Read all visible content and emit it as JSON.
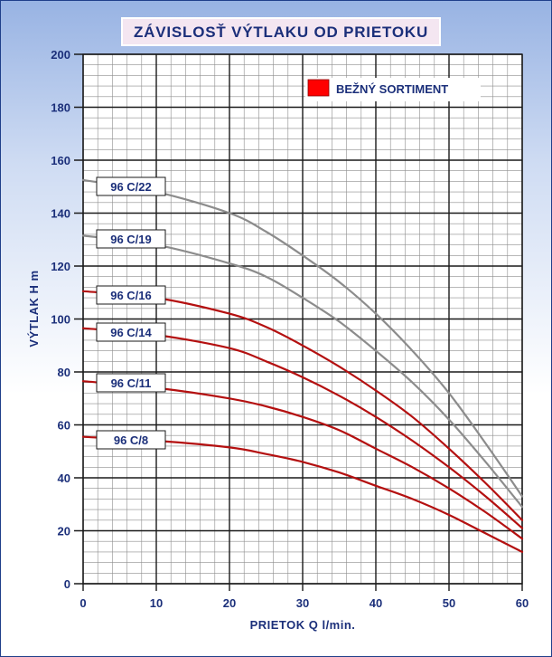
{
  "chart_data": {
    "type": "line",
    "title": "ZÁVISLOSŤ VÝTLAKU OD PRIETOKU",
    "xlabel": "PRIETOK Q l/min.",
    "ylabel": "VÝTLAK H m",
    "xlim": [
      0,
      60
    ],
    "ylim": [
      0,
      200
    ],
    "x_ticks": [
      0,
      10,
      20,
      30,
      40,
      50,
      60
    ],
    "y_ticks": [
      0,
      20,
      40,
      60,
      80,
      100,
      120,
      140,
      160,
      180,
      200
    ],
    "minor_x_step": 2,
    "minor_y_step": 4,
    "grid": true,
    "legend": {
      "position": "top-right",
      "entries": [
        {
          "label": "BEŽNÝ SORTIMENT",
          "color": "#ff0000"
        }
      ]
    },
    "colors": {
      "gray": "#8c8c8c",
      "red": "#b41010",
      "text": "#1b2f7a"
    },
    "series": [
      {
        "name": "96 C/22",
        "color": "gray",
        "x": [
          0,
          10,
          20,
          25,
          30,
          35,
          40,
          45,
          50,
          55,
          60
        ],
        "y": [
          152.5,
          148,
          140,
          133,
          124,
          114,
          102,
          88,
          72,
          53,
          33
        ]
      },
      {
        "name": "96 C/19",
        "color": "gray",
        "x": [
          0,
          10,
          20,
          25,
          30,
          35,
          40,
          45,
          50,
          55,
          60
        ],
        "y": [
          131.5,
          128,
          121,
          116,
          108,
          99,
          88,
          76,
          62,
          46,
          29
        ]
      },
      {
        "name": "96 C/16",
        "color": "red",
        "x": [
          0,
          10,
          20,
          25,
          30,
          35,
          40,
          45,
          50,
          55,
          60
        ],
        "y": [
          110.5,
          108,
          102,
          97,
          90,
          82,
          73,
          63,
          51,
          38,
          24
        ]
      },
      {
        "name": "96 C/14",
        "color": "red",
        "x": [
          0,
          10,
          20,
          25,
          30,
          35,
          40,
          45,
          50,
          55,
          60
        ],
        "y": [
          96.5,
          94,
          89,
          84,
          78,
          71,
          63,
          54,
          44,
          33,
          21
        ]
      },
      {
        "name": "96 C/11",
        "color": "red",
        "x": [
          0,
          10,
          20,
          25,
          30,
          35,
          40,
          45,
          50,
          55,
          60
        ],
        "y": [
          76.5,
          74,
          70,
          67,
          63,
          58,
          51,
          44,
          36,
          27,
          17
        ]
      },
      {
        "name": "96 C/8",
        "color": "red",
        "x": [
          0,
          10,
          20,
          25,
          30,
          35,
          40,
          45,
          50,
          55,
          60
        ],
        "y": [
          55.5,
          54,
          51.5,
          49,
          46,
          42,
          37,
          32,
          26,
          19,
          12
        ]
      }
    ]
  }
}
